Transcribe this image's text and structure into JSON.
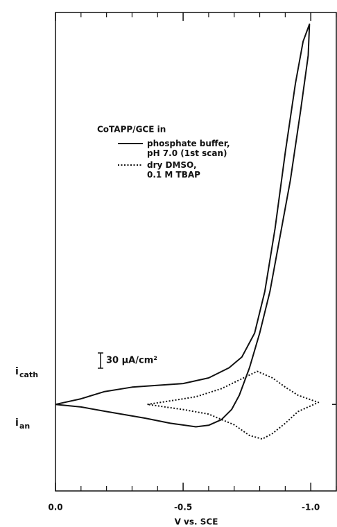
{
  "chart_data": {
    "type": "line",
    "xlabel": "V vs. SCE",
    "legend_title": "CoTAPP/GCE in",
    "y_labels": [
      {
        "main": "i",
        "sub": "cath"
      },
      {
        "main": "i",
        "sub": "an"
      }
    ],
    "scale_bar": {
      "value": 30,
      "label": "30 µA/cm²"
    },
    "xlim": [
      0,
      -1.1
    ],
    "ylim": [
      -170,
      770
    ],
    "xticks": [
      {
        "value": 0,
        "label": "0.0"
      },
      {
        "value": -0.5,
        "label": "-0.5"
      },
      {
        "value": -1.0,
        "label": "-1.0"
      }
    ],
    "xminor": [
      -0.1,
      -0.2,
      -0.3,
      -0.4,
      -0.6,
      -0.7,
      -0.8,
      -0.9,
      -1.1
    ],
    "yticks": [
      0
    ],
    "series": [
      {
        "name": "phosphate buffer,\npH 7.0 (1st scan)",
        "color": "#111",
        "dash": "solid",
        "x": [
          0,
          -0.1,
          -0.19,
          -0.3,
          -0.5,
          -0.6,
          -0.68,
          -0.73,
          -0.78,
          -0.82,
          -0.86,
          -0.9,
          -0.94,
          -0.97,
          -0.995,
          -0.99,
          -0.96,
          -0.92,
          -0.88,
          -0.84,
          -0.8,
          -0.76,
          -0.72,
          -0.69,
          -0.65,
          -0.6,
          -0.55,
          -0.45,
          -0.35,
          -0.2,
          -0.1,
          0
        ],
        "values": [
          0,
          11,
          25,
          34,
          41,
          52,
          72,
          93,
          140,
          222,
          345,
          495,
          631,
          713,
          747,
          686,
          577,
          440,
          331,
          222,
          140,
          72,
          18,
          -10,
          -30,
          -41,
          -44,
          -37,
          -27,
          -14,
          -5,
          0
        ]
      },
      {
        "name": "dry DMSO,\n0.1 M TBAP",
        "color": "#111",
        "dash": "dotted",
        "x": [
          -0.36,
          -0.45,
          -0.55,
          -0.65,
          -0.72,
          -0.79,
          -0.85,
          -0.9,
          -0.95,
          -1.03,
          -0.95,
          -0.9,
          -0.85,
          -0.81,
          -0.76,
          -0.7,
          -0.6,
          -0.5,
          -0.36
        ],
        "values": [
          0,
          7,
          15,
          31,
          48,
          65,
          52,
          34,
          18,
          4,
          -14,
          -37,
          -57,
          -68,
          -61,
          -40,
          -19,
          -10,
          0
        ]
      }
    ]
  }
}
